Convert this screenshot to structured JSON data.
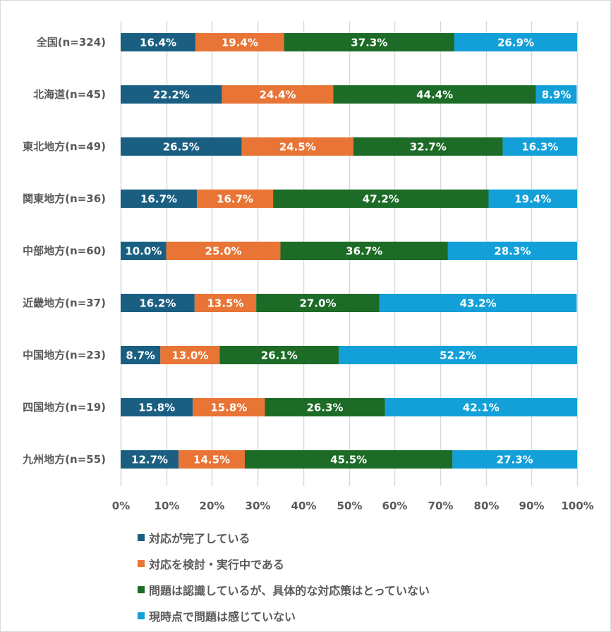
{
  "chart_data": {
    "type": "bar",
    "orientation": "horizontal",
    "stacked": "percent",
    "title": "",
    "xlabel": "",
    "ylabel": "",
    "xlim": [
      0,
      100
    ],
    "grid": true,
    "legend_position": "bottom",
    "categories": [
      "全国(n=324)",
      "北海道(n=45)",
      "東北地方(n=49)",
      "関東地方(n=36)",
      "中部地方(n=60)",
      "近畿地方(n=37)",
      "中国地方(n=23)",
      "四国地方(n=19)",
      "九州地方(n=55)"
    ],
    "x_ticks": [
      "0%",
      "10%",
      "20%",
      "30%",
      "40%",
      "50%",
      "60%",
      "70%",
      "80%",
      "90%",
      "100%"
    ],
    "series": [
      {
        "name": "対応が完了している",
        "color": "#1a5f82",
        "values": [
          16.4,
          22.2,
          26.5,
          16.7,
          10.0,
          16.2,
          8.7,
          15.8,
          12.7
        ]
      },
      {
        "name": "対応を検討・実行中である",
        "color": "#e87435",
        "values": [
          19.4,
          24.4,
          24.5,
          16.7,
          25.0,
          13.5,
          13.0,
          15.8,
          14.5
        ]
      },
      {
        "name": "問題は認識しているが、具体的な対応策はとっていない",
        "color": "#1c6b26",
        "values": [
          37.3,
          44.4,
          32.7,
          47.2,
          36.7,
          27.0,
          26.1,
          26.3,
          45.5
        ]
      },
      {
        "name": "現時点で問題は感じていない",
        "color": "#13a0d8",
        "values": [
          26.9,
          8.9,
          16.3,
          19.4,
          28.3,
          43.2,
          52.2,
          42.1,
          27.3
        ]
      }
    ]
  }
}
